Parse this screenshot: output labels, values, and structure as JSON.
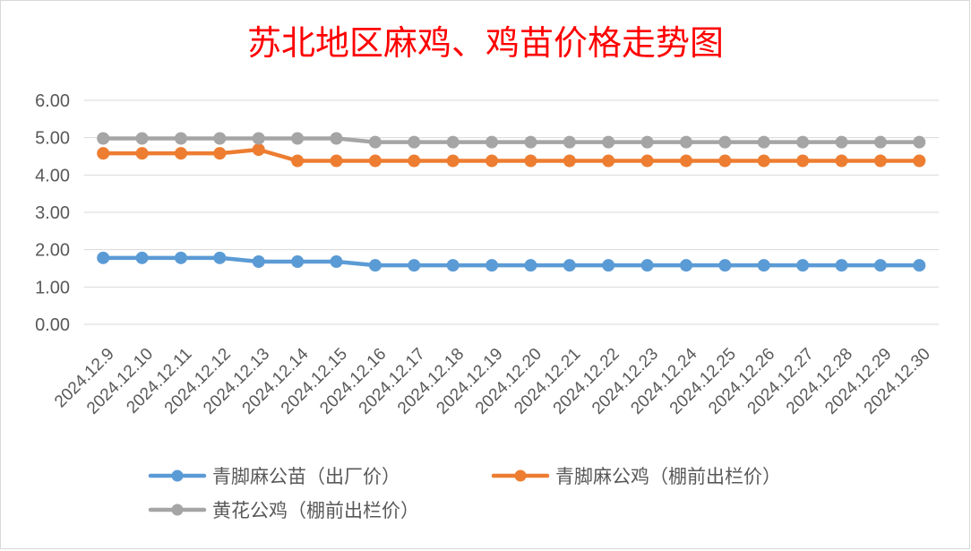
{
  "colors": {
    "title": "#FF0000",
    "labels": "#595959",
    "grid": "#D9D9D9",
    "border": "#D9D9D9"
  },
  "chart_data": {
    "type": "line",
    "title": "苏北地区麻鸡、鸡苗价格走势图",
    "xlabel": "",
    "ylabel": "",
    "ylim": [
      0,
      6
    ],
    "y_ticks": [
      "0.00",
      "1.00",
      "2.00",
      "3.00",
      "4.00",
      "5.00",
      "6.00"
    ],
    "grid": true,
    "legend_position": "bottom",
    "categories": [
      "2024.12.9",
      "2024.12.10",
      "2024.12.11",
      "2024.12.12",
      "2024.12.13",
      "2024.12.14",
      "2024.12.15",
      "2024.12.16",
      "2024.12.17",
      "2024.12.18",
      "2024.12.19",
      "2024.12.20",
      "2024.12.21",
      "2024.12.22",
      "2024.12.23",
      "2024.12.24",
      "2024.12.25",
      "2024.12.26",
      "2024.12.27",
      "2024.12.28",
      "2024.12.29",
      "2024.12.30"
    ],
    "series": [
      {
        "name": "青脚麻公苗（出厂价）",
        "color": "#5B9BD5",
        "values": [
          1.78,
          1.78,
          1.78,
          1.78,
          1.68,
          1.68,
          1.68,
          1.58,
          1.58,
          1.58,
          1.58,
          1.58,
          1.58,
          1.58,
          1.58,
          1.58,
          1.58,
          1.58,
          1.58,
          1.58,
          1.58,
          1.58
        ]
      },
      {
        "name": "青脚麻公鸡（棚前出栏价）",
        "color": "#ED7D31",
        "values": [
          4.58,
          4.58,
          4.58,
          4.58,
          4.68,
          4.38,
          4.38,
          4.38,
          4.38,
          4.38,
          4.38,
          4.38,
          4.38,
          4.38,
          4.38,
          4.38,
          4.38,
          4.38,
          4.38,
          4.38,
          4.38,
          4.38
        ]
      },
      {
        "name": "黄花公鸡（棚前出栏价）",
        "color": "#A5A5A5",
        "values": [
          4.98,
          4.98,
          4.98,
          4.98,
          4.98,
          4.98,
          4.98,
          4.88,
          4.88,
          4.88,
          4.88,
          4.88,
          4.88,
          4.88,
          4.88,
          4.88,
          4.88,
          4.88,
          4.88,
          4.88,
          4.88,
          4.88
        ]
      }
    ]
  }
}
